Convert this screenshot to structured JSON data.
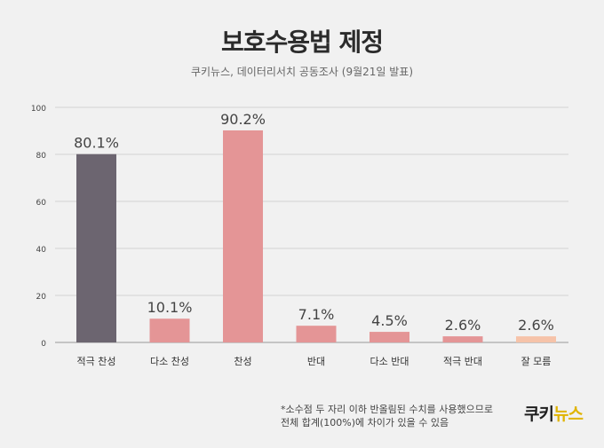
{
  "header": {
    "title": "보호수용법 제정",
    "subtitle": "쿠키뉴스, 데이터리서치 공동조사 (9월21일 발표)"
  },
  "chart_data": {
    "type": "bar",
    "categories": [
      "적극 찬성",
      "다소 찬성",
      "찬성",
      "반대",
      "다소 반대",
      "적극 반대",
      "잘 모름"
    ],
    "values": [
      80.1,
      10.1,
      90.2,
      7.1,
      4.5,
      2.6,
      2.6
    ],
    "value_labels": [
      "80.1%",
      "10.1%",
      "90.2%",
      "7.1%",
      "4.5%",
      "2.6%",
      "2.6%"
    ],
    "colors": [
      "#6c6570",
      "#e49596",
      "#e49596",
      "#e49596",
      "#e49596",
      "#e49596",
      "#f6c3a9"
    ],
    "ylim": [
      0,
      100
    ],
    "yticks": [
      0,
      20,
      40,
      60,
      80,
      100
    ],
    "grid": true
  },
  "footnote": {
    "line1": "*소수점 두 자리 이하 반올림된 수치를 사용했으므로",
    "line2": "전체 합계(100%)에 차이가 있을 수 있음"
  },
  "logo": {
    "part1": "쿠키",
    "part2": "뉴스"
  }
}
